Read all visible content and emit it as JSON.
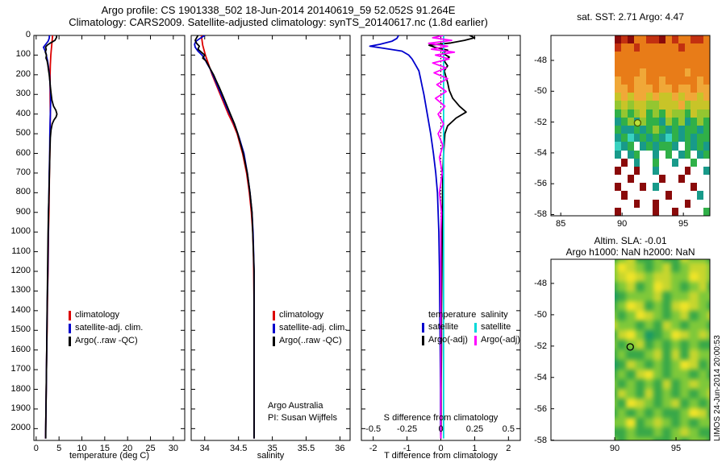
{
  "header": {
    "title_line1": "Argo profile: CS 1901338_502 18-Jun-2014 20140619_59 52.052S 91.264E",
    "title_line2": "Climatology: CARS2009. Satellite-adjusted climatology: synTS_20140617.nc (1.8d earlier)"
  },
  "side_text": "LIMOS 24-Jun-2014 20:00:53",
  "chart_data": [
    {
      "id": "temperature_profile",
      "type": "line",
      "title": "",
      "xlabel": "temperature (deg C)",
      "ylabel": "",
      "x_range": [
        -0.5,
        32.5
      ],
      "xticks": [
        0,
        5,
        10,
        15,
        20,
        25,
        30
      ],
      "ylim": [
        0,
        2060
      ],
      "yticks": [
        0,
        100,
        200,
        300,
        400,
        500,
        600,
        700,
        800,
        900,
        1000,
        1100,
        1200,
        1300,
        1400,
        1500,
        1600,
        1700,
        1800,
        1900,
        2000
      ],
      "show_ytick_labels": true,
      "legend": [
        {
          "label": "climatology",
          "color": "#dc0000"
        },
        {
          "label": "satellite-adj. clim.",
          "color": "#0000cd"
        },
        {
          "label": "Argo(..raw -QC)",
          "color": "#000000"
        }
      ],
      "series": [
        {
          "name": "climatology",
          "color": "#dc0000",
          "depth": [
            0,
            50,
            100,
            150,
            200,
            300,
            400,
            500,
            600,
            700,
            800,
            900,
            1000,
            1100,
            1200,
            1300,
            1400,
            1500,
            1600,
            1700,
            1800,
            1900,
            2000,
            2050
          ],
          "values": [
            3.6,
            3.4,
            3.2,
            3.1,
            3.05,
            3.05,
            3.1,
            3.05,
            3.0,
            2.9,
            2.85,
            2.8,
            2.7,
            2.65,
            2.6,
            2.5,
            2.45,
            2.4,
            2.3,
            2.25,
            2.2,
            2.15,
            2.1,
            2.05
          ]
        },
        {
          "name": "satellite-adj. clim.",
          "color": "#0000cd",
          "depth": [
            0,
            15,
            30,
            45,
            60,
            75,
            90,
            110,
            130,
            160,
            200,
            250,
            300,
            350,
            400,
            450,
            500,
            600,
            700,
            800,
            900,
            1000,
            1200,
            1400,
            1600,
            1800,
            2000,
            2050
          ],
          "values": [
            2.9,
            2.85,
            2.6,
            2.1,
            1.6,
            1.9,
            2.15,
            2.3,
            2.5,
            2.7,
            2.9,
            3.05,
            3.15,
            3.15,
            3.1,
            3.05,
            3.0,
            2.95,
            2.85,
            2.8,
            2.7,
            2.65,
            2.55,
            2.4,
            2.3,
            2.2,
            2.1,
            2.08
          ]
        },
        {
          "name": "Argo(..raw -QC)",
          "color": "#000000",
          "depth": [
            0,
            10,
            25,
            40,
            50,
            60,
            70,
            85,
            100,
            115,
            130,
            150,
            175,
            200,
            230,
            260,
            300,
            330,
            360,
            380,
            400,
            415,
            430,
            450,
            480,
            520,
            560,
            600,
            700,
            800,
            900,
            1000,
            1200,
            1400,
            1600,
            1800,
            2000,
            2050
          ],
          "values": [
            4.47,
            4.45,
            4.1,
            3.0,
            2.4,
            2.05,
            2.2,
            2.0,
            2.25,
            2.15,
            2.4,
            2.55,
            2.7,
            2.85,
            3.0,
            3.1,
            3.3,
            3.45,
            3.8,
            4.3,
            4.55,
            4.35,
            3.9,
            3.5,
            3.25,
            3.1,
            3.05,
            3.0,
            2.9,
            2.8,
            2.7,
            2.6,
            2.5,
            2.4,
            2.3,
            2.2,
            2.1,
            2.1
          ]
        }
      ]
    },
    {
      "id": "salinity_profile",
      "type": "line",
      "title": "",
      "xlabel": "salinity",
      "ylabel": "",
      "x_range": [
        33.8,
        36.15
      ],
      "xticks": [
        34,
        34.5,
        35,
        35.5,
        36
      ],
      "ylim": [
        0,
        2060
      ],
      "yticks": [
        0,
        100,
        200,
        300,
        400,
        500,
        600,
        700,
        800,
        900,
        1000,
        1100,
        1200,
        1300,
        1400,
        1500,
        1600,
        1700,
        1800,
        1900,
        2000
      ],
      "show_ytick_labels": false,
      "annotation": [
        "Argo Australia",
        "PI: Susan Wijffels"
      ],
      "legend": [
        {
          "label": "climatology",
          "color": "#dc0000"
        },
        {
          "label": "satellite-adj. clim.",
          "color": "#0000cd"
        },
        {
          "label": "Argo(..raw -QC)",
          "color": "#000000"
        }
      ],
      "series": [
        {
          "name": "climatology",
          "color": "#dc0000",
          "depth": [
            0,
            50,
            100,
            150,
            200,
            250,
            300,
            350,
            400,
            450,
            500,
            600,
            700,
            800,
            900,
            1000,
            1100,
            1200,
            1400,
            1600,
            1800,
            2000,
            2050
          ],
          "values": [
            33.95,
            33.97,
            34.01,
            34.06,
            34.11,
            34.17,
            34.23,
            34.29,
            34.35,
            34.42,
            34.48,
            34.56,
            34.62,
            34.66,
            34.69,
            34.71,
            34.72,
            34.725,
            34.73,
            34.73,
            34.73,
            34.73,
            34.73
          ]
        },
        {
          "name": "satellite-adj. clim.",
          "color": "#0000cd",
          "depth": [
            0,
            15,
            30,
            45,
            60,
            80,
            100,
            120,
            140,
            170,
            200,
            240,
            280,
            320,
            370,
            420,
            470,
            520,
            600,
            700,
            800,
            900,
            1000,
            1200,
            1400,
            1600,
            1800,
            2000,
            2050
          ],
          "values": [
            34.0,
            33.93,
            33.87,
            33.85,
            33.86,
            33.9,
            33.96,
            34.0,
            34.03,
            34.08,
            34.12,
            34.17,
            34.22,
            34.27,
            34.33,
            34.4,
            34.46,
            34.51,
            34.58,
            34.63,
            34.67,
            34.7,
            34.715,
            34.73,
            34.73,
            34.73,
            34.73,
            34.73,
            34.73
          ]
        },
        {
          "name": "Argo(..raw -QC)",
          "color": "#000000",
          "depth": [
            0,
            12,
            25,
            40,
            55,
            70,
            85,
            100,
            115,
            130,
            150,
            175,
            200,
            230,
            260,
            300,
            350,
            400,
            450,
            500,
            600,
            700,
            800,
            900,
            1000,
            1200,
            1400,
            1600,
            1800,
            2000,
            2050
          ],
          "values": [
            33.9,
            33.88,
            33.86,
            33.88,
            33.92,
            33.9,
            33.95,
            34.0,
            33.97,
            34.02,
            34.05,
            34.09,
            34.13,
            34.17,
            34.21,
            34.26,
            34.32,
            34.38,
            34.44,
            34.49,
            34.57,
            34.63,
            34.67,
            34.7,
            34.71,
            34.73,
            34.73,
            34.73,
            34.73,
            34.73,
            34.73
          ]
        }
      ]
    },
    {
      "id": "difference_profile",
      "type": "line",
      "title": "",
      "xlabel": "T difference from climatology",
      "ylabel": "",
      "x_range": [
        -2.35,
        2.35
      ],
      "xticks": [
        -2,
        -1,
        0,
        1,
        2
      ],
      "ylim": [
        0,
        2060
      ],
      "yticks": [
        0,
        100,
        200,
        300,
        400,
        500,
        600,
        700,
        800,
        900,
        1000,
        1100,
        1200,
        1300,
        1400,
        1500,
        1600,
        1700,
        1800,
        1900,
        2000
      ],
      "show_ytick_labels": false,
      "zero_line": true,
      "secondary_axis": {
        "label": "S difference from climatology",
        "ticks": [
          -0.5,
          -0.25,
          0,
          0.25,
          0.5
        ],
        "scale": 4
      },
      "legend_columns": [
        {
          "header": "temperature",
          "items": [
            {
              "label": "satellite",
              "color": "#0000cd"
            },
            {
              "label": "Argo(-adj)",
              "color": "#000000"
            }
          ]
        },
        {
          "header": "salinity",
          "items": [
            {
              "label": "satellite",
              "color": "#00d8d8"
            },
            {
              "label": "Argo(-adj)",
              "color": "#ff00ff"
            }
          ]
        }
      ],
      "series": [
        {
          "name": "temperature satellite",
          "color": "#0000cd",
          "depth": [
            0,
            15,
            30,
            45,
            55,
            65,
            80,
            100,
            120,
            150,
            180,
            220,
            260,
            300,
            350,
            400,
            450,
            500,
            600,
            700,
            800,
            1000,
            1200,
            1400,
            1600,
            1800,
            2000,
            2050
          ],
          "values": [
            -1.25,
            -1.3,
            -1.45,
            -1.8,
            -2.1,
            -1.7,
            -1.15,
            -0.95,
            -0.85,
            -0.75,
            -0.65,
            -0.6,
            -0.55,
            -0.5,
            -0.45,
            -0.4,
            -0.35,
            -0.3,
            -0.22,
            -0.15,
            -0.1,
            -0.06,
            -0.04,
            -0.03,
            -0.02,
            -0.01,
            -0.01,
            0.0
          ]
        },
        {
          "name": "temperature Argo(-adj)",
          "color": "#000000",
          "depth": [
            0,
            12,
            25,
            38,
            50,
            62,
            75,
            90,
            110,
            130,
            155,
            180,
            210,
            240,
            280,
            320,
            360,
            390,
            420,
            460,
            500,
            600,
            700,
            800,
            1000,
            1200,
            1400,
            1600,
            1800,
            2000,
            2050
          ],
          "values": [
            0.85,
            1.0,
            0.7,
            0.3,
            -0.35,
            -0.15,
            0.2,
            0.05,
            0.25,
            0.1,
            0.2,
            0.1,
            0.15,
            0.2,
            0.25,
            0.35,
            0.55,
            0.75,
            0.45,
            0.2,
            0.12,
            0.08,
            0.06,
            0.05,
            0.04,
            0.03,
            0.02,
            0.02,
            0.01,
            0.01,
            0.0
          ]
        },
        {
          "name": "salinity satellite",
          "color": "#00d8d8",
          "scale": 4,
          "depth": [
            0,
            100,
            300,
            600,
            1000,
            1500,
            2000,
            2050
          ],
          "values": [
            0.02,
            0.02,
            0.02,
            0.02,
            0.02,
            0.02,
            0.02,
            0.02
          ]
        },
        {
          "name": "salinity Argo(-adj)",
          "color": "#ff00ff",
          "scale": 4,
          "depth": [
            0,
            12,
            25,
            40,
            55,
            70,
            85,
            100,
            120,
            140,
            165,
            190,
            220,
            250,
            285,
            320,
            360,
            400,
            450,
            500,
            560,
            620,
            700,
            800,
            900,
            1000,
            1200,
            1400,
            1600,
            1800,
            2000,
            2050
          ],
          "values": [
            0.02,
            -0.06,
            0.08,
            -0.09,
            0.05,
            -0.07,
            0.1,
            -0.04,
            0.06,
            -0.06,
            0.04,
            -0.05,
            0.05,
            -0.03,
            0.04,
            -0.04,
            0.03,
            -0.02,
            0.02,
            -0.02,
            0.015,
            -0.01,
            0.01,
            -0.01,
            0.005,
            0.0,
            0.0,
            0.0,
            0.0,
            0.0,
            0.0,
            0.0
          ]
        }
      ]
    },
    {
      "id": "sst_map",
      "type": "heatmap",
      "title": "sat. SST: 2.71 Argo: 4.47",
      "lon_range": [
        84.2,
        97.16
      ],
      "lat_range": [
        -46.38,
        -58.08
      ],
      "img_lon_range": [
        89.4,
        97.16
      ],
      "xticks": [
        85,
        90,
        95
      ],
      "yticks": [
        -48,
        -50,
        -52,
        -54,
        -56,
        -58
      ],
      "marker": {
        "lon": 91.264,
        "lat": -52.052,
        "fill": "#bce03a",
        "edge": "#4a5a00"
      },
      "palette": {
        "M": "#8a0a0a",
        "R": "#c23010",
        "O": "#e87c18",
        "o": "#f0a838",
        "y": "#c8c428",
        "g": "#94c630",
        "G": "#30b048",
        "T": "#189a8a",
        "C": "#38d2c0",
        "W": "#ffffff"
      },
      "grid": [
        "MRMOORRMOROORRO",
        "ROOROOOOOOROOOO",
        "OOOOOOOOOOOOOOO",
        "OOOOOOOOOOOOOOO",
        "OOOOoOOOOOOoOOO",
        "oOOooOOoOOOOOoO",
        "ooOoooOooOooOoo",
        "yoyooyoyyoyooyo",
        "gygyyggyyyogyyy",
        "GgGgyGgGyggGygg",
        "TGgTgGGTgGgTGgG",
        "GTTGTGgGTGTGGTG",
        "TGCTGTGTCGTGTGG",
        "CTGWTGTGGTWGTGT",
        "TWTGWWTWGWTGWTG",
        "WMWTWWGWWTWWGWW",
        "MWWMWWTWWWWMWWT",
        "WWMWWWWMWWMWWWW",
        "MWWWMWTWWWWWMWW",
        "WMWWWWWWMWWWWTW",
        "WWWMWWMWWWWMWWW",
        "MWWWWWMWWMWWWWG"
      ]
    },
    {
      "id": "sla_map",
      "type": "heatmap",
      "title": "Altim. SLA: -0.01",
      "subtitle": "Argo h1000: NaN h2000: NaN",
      "lon_range": [
        84.8,
        97.76
      ],
      "lat_range": [
        -46.46,
        -58.02
      ],
      "img_lon_range": [
        90.0,
        97.76
      ],
      "xticks": [
        90,
        95
      ],
      "yticks": [
        -48,
        -50,
        -52,
        -54,
        -56,
        -58
      ],
      "marker": {
        "lon": 91.264,
        "lat": -52.052,
        "fill": "none",
        "edge": "#000000"
      },
      "blur": 3,
      "palette": {
        "Y": "#f0e428",
        "y": "#c6d62e",
        "g": "#7ec83a",
        "G": "#38a848",
        "T": "#1a9a64"
      },
      "grid": [
        "GgyGGgGGyggG",
        "gYygGgyGgyyg",
        "gyYygyyggYyg",
        "GgyGgYygGgyG",
        "TGgggyGggygg",
        "GgYyGgGyYygG",
        "gGgYygGgyGgy",
        "yggGgGygGggG",
        "GyYgTGgYygyg",
        "gGgyGgGgGgGG",
        "GgGGgyGyGygg",
        "TGygGgGgYyGg",
        "GgGyYgGggGgG",
        "gGgGgGyGgygg",
        "GygGyGgGgGgy",
        "gGYygGgyGgGg",
        "GgGgGgGGgYyG",
        "ggYGgygGgGgg",
        "GGgGGgGgygGG",
        "gGgggGGgGggG"
      ]
    }
  ]
}
